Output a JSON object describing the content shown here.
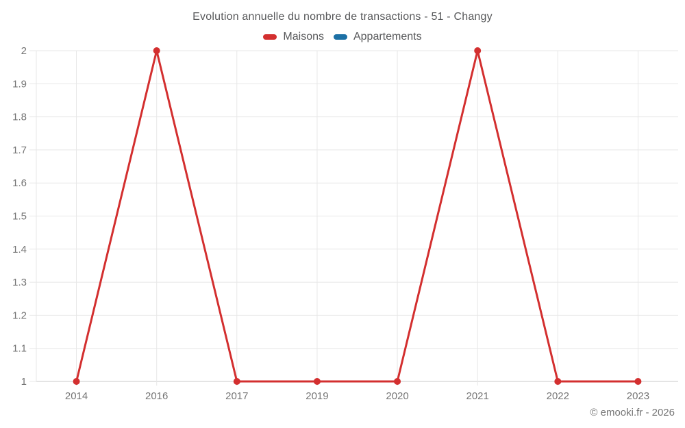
{
  "title": "Evolution annuelle du nombre de transactions - 51 - Changy",
  "legend": [
    {
      "label": "Maisons",
      "color": "#d32f2f"
    },
    {
      "label": "Appartements",
      "color": "#1c70a5"
    }
  ],
  "footer": "© emooki.fr - 2026",
  "chart_data": {
    "type": "line",
    "title": "Evolution annuelle du nombre de transactions - 51 - Changy",
    "categories": [
      "2014",
      "2016",
      "2017",
      "2019",
      "2020",
      "2021",
      "2022",
      "2023"
    ],
    "series": [
      {
        "name": "Maisons",
        "color": "#d32f2f",
        "values": [
          1,
          2,
          1,
          1,
          1,
          2,
          1,
          1
        ]
      },
      {
        "name": "Appartements",
        "color": "#1c70a5",
        "values": []
      }
    ],
    "xlabel": "",
    "ylabel": "",
    "ylim": [
      1,
      2
    ],
    "yticks": [
      1,
      1.1,
      1.2,
      1.3,
      1.4,
      1.5,
      1.6,
      1.7,
      1.8,
      1.9,
      2
    ],
    "grid": true,
    "legend_position": "top",
    "marker_radius": 5,
    "line_width": 3
  }
}
